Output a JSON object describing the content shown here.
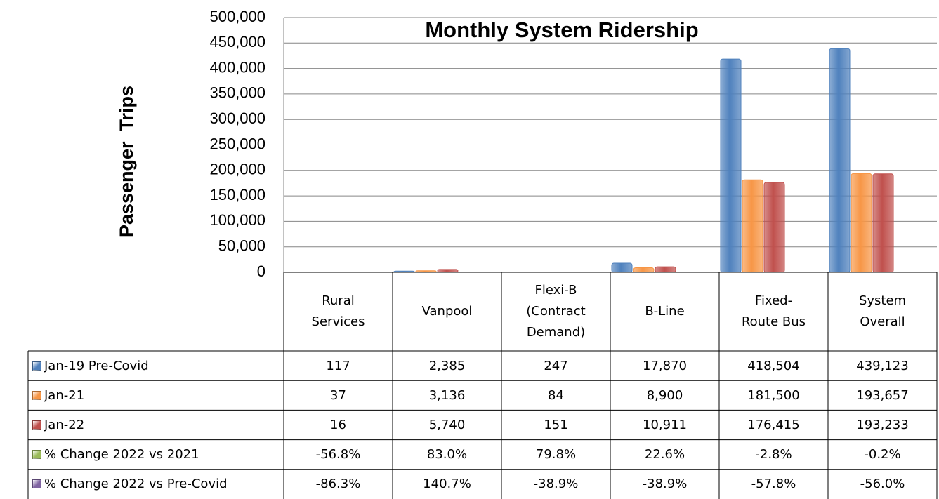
{
  "chart_data": {
    "type": "bar",
    "title": "Monthly System Ridership",
    "y_label": "Passenger  Trips",
    "categories": [
      "Rural Services",
      "Vanpool",
      "Flexi-B (Contract Demand)",
      "B-Line",
      "Fixed-Route Bus",
      "System Overall"
    ],
    "series": [
      {
        "name": "Jan-19 Pre-Covid",
        "color": "#4f81bd",
        "values": [
          117,
          2385,
          247,
          17870,
          418504,
          439123
        ],
        "value_labels": [
          "117",
          "2,385",
          "247",
          "17,870",
          "418,504",
          "439,123"
        ]
      },
      {
        "name": "Jan-21",
        "color": "#f79646",
        "values": [
          37,
          3136,
          84,
          8900,
          181500,
          193657
        ],
        "value_labels": [
          "37",
          "3,136",
          "84",
          "8,900",
          "181,500",
          "193,657"
        ]
      },
      {
        "name": "Jan-22",
        "color": "#c0504d",
        "values": [
          16,
          5740,
          151,
          10911,
          176415,
          193233
        ],
        "value_labels": [
          "16",
          "5,740",
          "151",
          "10,911",
          "176,415",
          "193,233"
        ]
      },
      {
        "name": "% Change 2022 vs 2021",
        "color": "#9bbb59",
        "table_only": true,
        "values": [
          -56.8,
          83.0,
          79.8,
          22.6,
          -2.8,
          -0.2
        ],
        "value_labels": [
          "-56.8%",
          "83.0%",
          "79.8%",
          "22.6%",
          "-2.8%",
          "-0.2%"
        ]
      },
      {
        "name": "% Change 2022 vs Pre-Covid",
        "color": "#8064a2",
        "table_only": true,
        "values": [
          -86.3,
          140.7,
          -38.9,
          -38.9,
          -57.8,
          -56.0
        ],
        "value_labels": [
          "-86.3%",
          "140.7%",
          "-38.9%",
          "-38.9%",
          "-57.8%",
          "-56.0%"
        ]
      }
    ],
    "ylim": [
      0,
      500000
    ],
    "yticks": [
      0,
      {
        "value": 50000,
        "label": "50,000"
      },
      {
        "value": 100000,
        "label": "100,000"
      },
      {
        "value": 150000,
        "label": "150,000"
      },
      {
        "value": 200000,
        "label": "200,000"
      },
      {
        "value": 250000,
        "label": "250,000"
      },
      {
        "value": 300000,
        "label": "300,000"
      },
      {
        "value": 350000,
        "label": "350,000"
      },
      {
        "value": 400000,
        "label": "400,000"
      },
      {
        "value": 450000,
        "label": "450,000"
      },
      {
        "value": 500000,
        "label": "500,000"
      }
    ],
    "grid": true
  }
}
